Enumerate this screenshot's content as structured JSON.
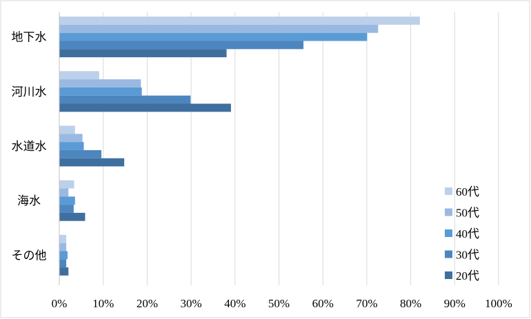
{
  "chart_data": {
    "type": "bar",
    "orientation": "horizontal",
    "title": "",
    "xlabel": "",
    "ylabel": "",
    "categories": [
      "地下水",
      "河川水",
      "水道水",
      "海水",
      "その他"
    ],
    "xlim": [
      0,
      100
    ],
    "x_ticks": [
      "0%",
      "10%",
      "20%",
      "30%",
      "40%",
      "50%",
      "60%",
      "70%",
      "80%",
      "90%",
      "100%"
    ],
    "grid": true,
    "legend_position": "right",
    "series": [
      {
        "name": "60代",
        "color": "#bdd0ea",
        "values": [
          82,
          9,
          3.5,
          3.3,
          1.5
        ]
      },
      {
        "name": "50代",
        "color": "#9ab9e2",
        "values": [
          72.5,
          18.5,
          5.2,
          2,
          1.5
        ]
      },
      {
        "name": "40代",
        "color": "#5b9bd5",
        "values": [
          70,
          18.7,
          5.5,
          3.5,
          1.8
        ]
      },
      {
        "name": "30代",
        "color": "#4d86bf",
        "values": [
          55.5,
          29.8,
          9.5,
          3.2,
          1.5
        ]
      },
      {
        "name": "20代",
        "color": "#3f6f9f",
        "values": [
          38,
          39,
          14.7,
          5.8,
          2
        ]
      }
    ]
  }
}
